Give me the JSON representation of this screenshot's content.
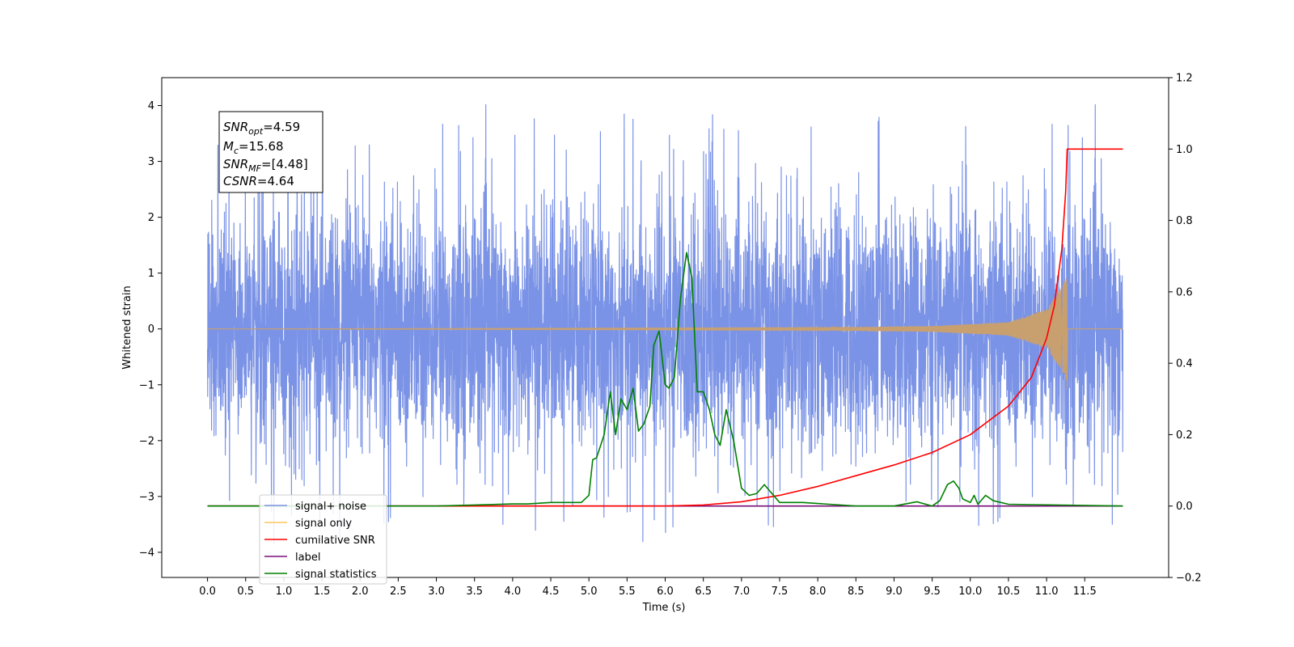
{
  "chart_data": {
    "type": "line",
    "xlabel": "Time (s)",
    "ylabel": "Whitened strain",
    "xlim": [
      -0.6,
      12.6
    ],
    "ylim_left": [
      -4.45,
      4.5
    ],
    "ylim_right": [
      -0.2,
      1.2
    ],
    "x_ticks": [
      "0.0",
      "0.5",
      "1.0",
      "1.5",
      "2.0",
      "2.5",
      "3.0",
      "3.5",
      "4.0",
      "4.5",
      "5.0",
      "5.5",
      "6.0",
      "6.5",
      "7.0",
      "7.5",
      "8.0",
      "8.5",
      "9.0",
      "9.5",
      "10.0",
      "10.5",
      "11.0",
      "11.5"
    ],
    "y_ticks_left": [
      "4",
      "3",
      "2",
      "1",
      "0",
      "−1",
      "−2",
      "−3",
      "−4"
    ],
    "y_ticks_right": [
      "1.2",
      "1.0",
      "0.8",
      "0.6",
      "0.4",
      "0.2",
      "0.0",
      "−0.2"
    ],
    "annotation": {
      "lines": [
        {
          "main": "SNR",
          "sub": "opt",
          "rest": "=4.59"
        },
        {
          "main": "M",
          "sub": "c",
          "rest": "=15.68"
        },
        {
          "main": "SNR",
          "sub": "MF",
          "rest": "=[4.48]"
        },
        {
          "main": "CSNR",
          "sub": "",
          "rest": "=4.64"
        }
      ]
    },
    "legend": {
      "position": "lower-left",
      "entries": [
        {
          "label": "signal+ noise",
          "color": "#7b93e6"
        },
        {
          "label": "signal only",
          "color": "#ffc55e"
        },
        {
          "label": "cumilative SNR",
          "color": "#ff0000"
        },
        {
          "label": "label",
          "color": "#7b0f7a"
        },
        {
          "label": "signal statistics",
          "color": "#008000"
        }
      ]
    },
    "series": [
      {
        "name": "signal+ noise",
        "axis": "left",
        "color": "#7b93e6",
        "x_range": [
          0.0,
          12.0
        ],
        "description_values": {
          "typical_amplitude": 2.0,
          "max": 4.12,
          "min": -4.0
        }
      },
      {
        "name": "signal only",
        "axis": "left",
        "color": "#c8a070",
        "x_range": [
          0.0,
          11.27
        ],
        "envelope": {
          "x": [
            0.0,
            8.0,
            9.5,
            10.5,
            11.0,
            11.2,
            11.27
          ],
          "amplitude": [
            0.0,
            0.02,
            0.05,
            0.12,
            0.35,
            0.75,
            0.95
          ]
        }
      },
      {
        "name": "cumilative SNR",
        "axis": "right",
        "color": "#ff0000",
        "x": [
          0.0,
          6.0,
          6.5,
          7.0,
          7.5,
          8.0,
          8.5,
          9.0,
          9.5,
          10.0,
          10.5,
          10.8,
          11.0,
          11.1,
          11.2,
          11.25,
          11.27,
          11.28,
          12.0
        ],
        "y": [
          0.0,
          0.0,
          0.003,
          0.012,
          0.03,
          0.055,
          0.085,
          0.115,
          0.15,
          0.2,
          0.28,
          0.36,
          0.47,
          0.56,
          0.72,
          0.88,
          1.0,
          1.0,
          1.0
        ]
      },
      {
        "name": "label",
        "axis": "right",
        "color": "#7b0f7a",
        "x": [
          0.0,
          12.0
        ],
        "y": [
          0.0,
          0.0
        ]
      },
      {
        "name": "signal statistics",
        "axis": "right",
        "color": "#008000",
        "x": [
          0.0,
          3.0,
          3.5,
          4.0,
          4.2,
          4.5,
          4.9,
          5.0,
          5.05,
          5.1,
          5.2,
          5.28,
          5.35,
          5.42,
          5.5,
          5.58,
          5.65,
          5.72,
          5.8,
          5.85,
          5.92,
          6.0,
          6.05,
          6.12,
          6.2,
          6.28,
          6.35,
          6.42,
          6.5,
          6.58,
          6.65,
          6.72,
          6.8,
          6.9,
          7.0,
          7.1,
          7.2,
          7.3,
          7.5,
          7.8,
          8.5,
          9.0,
          9.3,
          9.5,
          9.6,
          9.7,
          9.78,
          9.85,
          9.9,
          10.0,
          10.05,
          10.1,
          10.2,
          10.3,
          10.5,
          12.0
        ],
        "y": [
          0.0,
          0.0,
          0.003,
          0.006,
          0.006,
          0.01,
          0.01,
          0.03,
          0.13,
          0.135,
          0.2,
          0.32,
          0.2,
          0.3,
          0.27,
          0.33,
          0.21,
          0.23,
          0.28,
          0.45,
          0.49,
          0.34,
          0.33,
          0.36,
          0.58,
          0.71,
          0.64,
          0.32,
          0.32,
          0.27,
          0.2,
          0.17,
          0.27,
          0.18,
          0.05,
          0.03,
          0.035,
          0.06,
          0.01,
          0.01,
          0.0,
          0.0,
          0.012,
          0.0,
          0.015,
          0.06,
          0.07,
          0.05,
          0.02,
          0.01,
          0.03,
          0.005,
          0.03,
          0.015,
          0.005,
          0.0
        ]
      }
    ]
  }
}
